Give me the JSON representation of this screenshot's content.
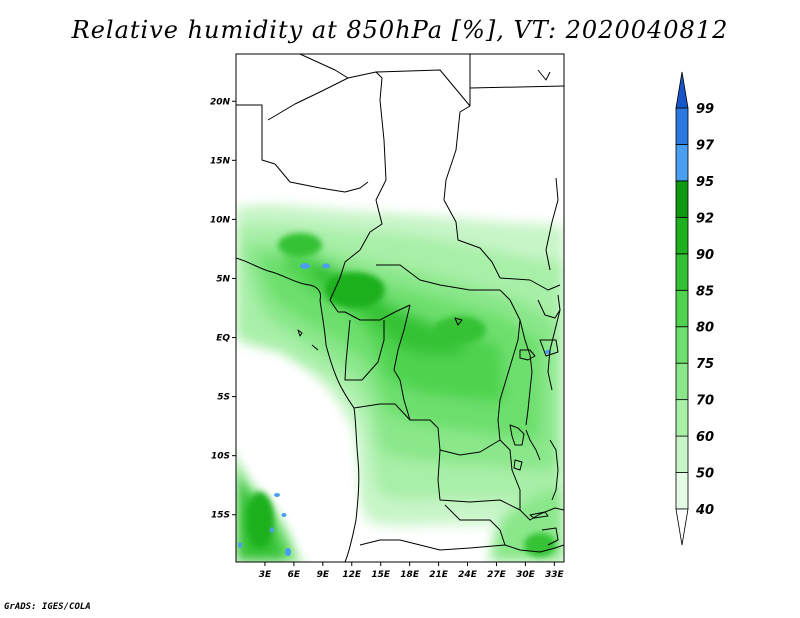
{
  "title": "Relative humidity at 850hPa [%], VT: 2020040812",
  "credit": "GrADS: IGES/COLA",
  "map": {
    "lat_range": [
      -19,
      24
    ],
    "lon_range": [
      0,
      34
    ],
    "lat_ticks": [
      "20N",
      "15N",
      "10N",
      "5N",
      "EQ",
      "5S",
      "10S",
      "15S"
    ],
    "lon_ticks": [
      "3E",
      "6E",
      "9E",
      "12E",
      "15E",
      "18E",
      "21E",
      "24E",
      "27E",
      "30E",
      "33E"
    ]
  },
  "colorbar": {
    "labels": [
      "40",
      "50",
      "60",
      "70",
      "75",
      "80",
      "85",
      "90",
      "92",
      "95",
      "97",
      "99"
    ],
    "colors": [
      "#ffffff",
      "#e6fbe6",
      "#c8f5c8",
      "#a8efa8",
      "#8ae78a",
      "#6ddf6d",
      "#4fd34f",
      "#34c234",
      "#1fb01f",
      "#109810",
      "#4a9ef0",
      "#2a78e0",
      "#1656c8"
    ]
  },
  "legend": {
    "over": "99",
    "under": "40"
  }
}
